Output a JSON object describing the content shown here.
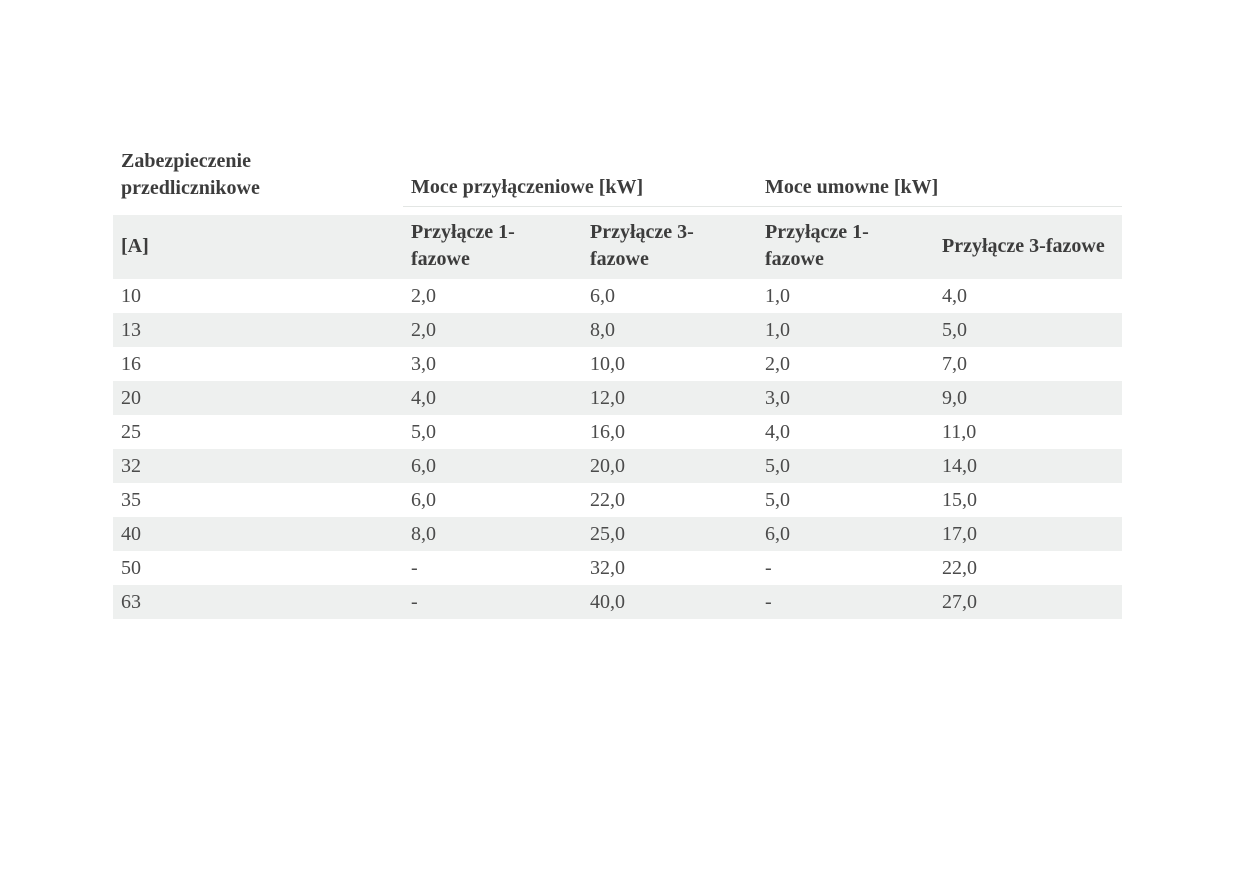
{
  "colors": {
    "stripe": "#eef0ef",
    "rule": "#e3e6e4",
    "header_text": "#3c3c3c",
    "body_text": "#4b4b4b",
    "background": "#ffffff"
  },
  "table": {
    "corner_header": "Zabezpieczenie przedlicznikowe",
    "corner_unit": "[A]",
    "groups": [
      {
        "label": "Moce przyłączeniowe [kW]"
      },
      {
        "label": "Moce umowne [kW]"
      }
    ],
    "sub_headers": [
      "Przyłącze 1-fazowe",
      "Przyłącze 3-fazowe",
      "Przyłącze 1-fazowe",
      "Przyłącze 3-fazowe"
    ],
    "rows": [
      {
        "fuse": "10",
        "values": [
          "2,0",
          "6,0",
          "1,0",
          "4,0"
        ]
      },
      {
        "fuse": "13",
        "values": [
          "2,0",
          "8,0",
          "1,0",
          "5,0"
        ]
      },
      {
        "fuse": "16",
        "values": [
          "3,0",
          "10,0",
          "2,0",
          "7,0"
        ]
      },
      {
        "fuse": "20",
        "values": [
          "4,0",
          "12,0",
          "3,0",
          "9,0"
        ]
      },
      {
        "fuse": "25",
        "values": [
          "5,0",
          "16,0",
          "4,0",
          "11,0"
        ]
      },
      {
        "fuse": "32",
        "values": [
          "6,0",
          "20,0",
          "5,0",
          "14,0"
        ]
      },
      {
        "fuse": "35",
        "values": [
          "6,0",
          "22,0",
          "5,0",
          "15,0"
        ]
      },
      {
        "fuse": "40",
        "values": [
          "8,0",
          "25,0",
          "6,0",
          "17,0"
        ]
      },
      {
        "fuse": "50",
        "values": [
          "-",
          "32,0",
          "-",
          "22,0"
        ]
      },
      {
        "fuse": "63",
        "values": [
          "-",
          "40,0",
          "-",
          "27,0"
        ]
      }
    ]
  }
}
